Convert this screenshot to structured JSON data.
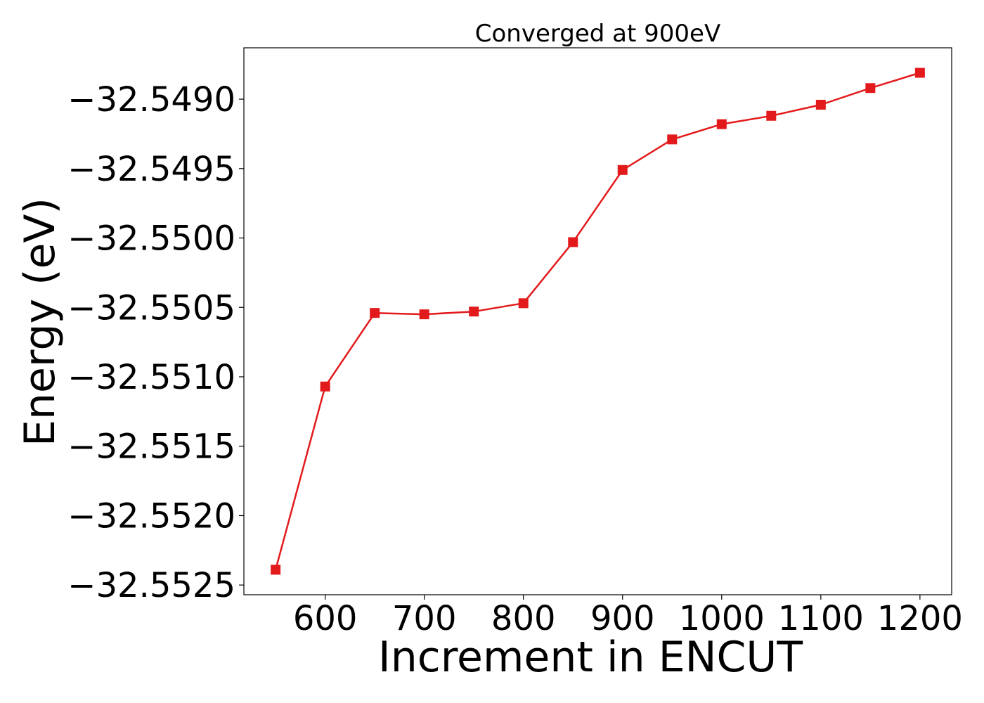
{
  "chart_data": {
    "type": "line",
    "title": "Converged at 900eV",
    "xlabel": "Increment in ENCUT",
    "ylabel": "Energy (eV)",
    "xlim": [
      518,
      1232
    ],
    "ylim": [
      -32.55257,
      -32.54863
    ],
    "xticks": [
      600,
      700,
      800,
      900,
      1000,
      1100,
      1200
    ],
    "xtick_labels": [
      "600",
      "700",
      "800",
      "900",
      "1000",
      "1100",
      "1200"
    ],
    "yticks": [
      -32.549,
      -32.5495,
      -32.55,
      -32.5505,
      -32.551,
      -32.5515,
      -32.552,
      -32.5525
    ],
    "ytick_labels": [
      "−32.5490",
      "−32.5495",
      "−32.5500",
      "−32.5505",
      "−32.5510",
      "−32.5515",
      "−32.5520",
      "−32.5525"
    ],
    "grid": false,
    "legend": "none",
    "marker": "square",
    "color": "#e31a1c",
    "series": [
      {
        "x": [
          550,
          600,
          650,
          700,
          750,
          800,
          850,
          900,
          950,
          1000,
          1050,
          1100,
          1150,
          1200
        ],
        "y": [
          -32.55239,
          -32.55107,
          -32.55054,
          -32.55055,
          -32.55053,
          -32.55047,
          -32.55003,
          -32.54951,
          -32.54929,
          -32.54918,
          -32.54912,
          -32.54904,
          -32.54892,
          -32.54881
        ]
      }
    ]
  }
}
